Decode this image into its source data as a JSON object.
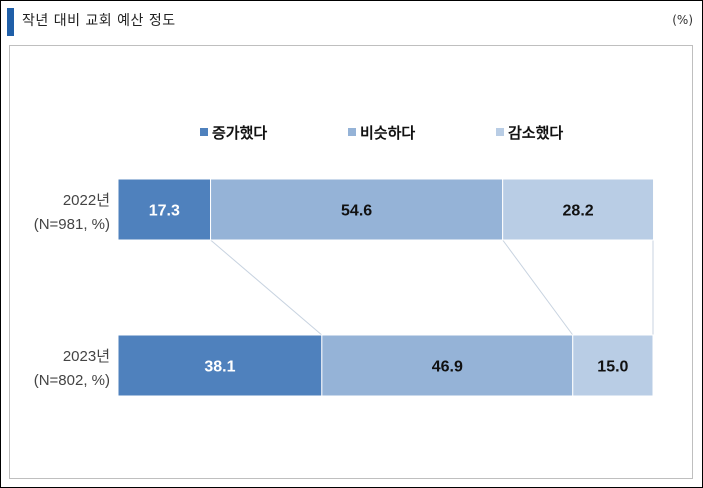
{
  "header": {
    "title": "작년 대비 교회 예산 정도",
    "unit": "(%)"
  },
  "colors": {
    "increase": "#4f81bd",
    "similar": "#95b3d7",
    "decrease": "#b9cde5",
    "accent": "#1f5fa8"
  },
  "chart_data": {
    "type": "bar",
    "orientation": "horizontal",
    "stacked": true,
    "title": "작년 대비 교회 예산 정도",
    "unit": "(%)",
    "categories": [
      {
        "year": "2022년",
        "n": "(N=981, %)"
      },
      {
        "year": "2023년",
        "n": "(N=802, %)"
      }
    ],
    "series": [
      {
        "name": "증가했다",
        "values": [
          17.3,
          38.1
        ],
        "labels": [
          "17.3",
          "38.1"
        ],
        "color": "#4f81bd",
        "label_color": "#ffffff"
      },
      {
        "name": "비슷하다",
        "values": [
          54.6,
          46.9
        ],
        "labels": [
          "54.6",
          "46.9"
        ],
        "color": "#95b3d7",
        "label_color": "#111111"
      },
      {
        "name": "감소했다",
        "values": [
          28.2,
          15.0
        ],
        "labels": [
          "28.2",
          "15.0"
        ],
        "color": "#b9cde5",
        "label_color": "#111111"
      }
    ],
    "xlim": [
      0,
      100
    ],
    "legend": "top",
    "series_lines": true,
    "grid": false
  }
}
